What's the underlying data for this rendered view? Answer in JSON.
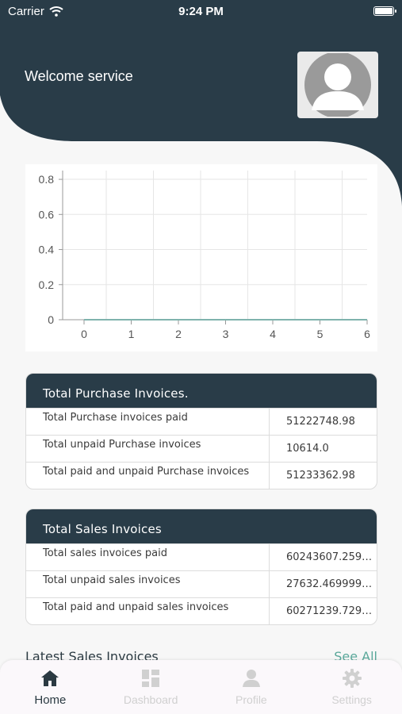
{
  "status_bar": {
    "carrier": "Carrier",
    "time": "9:24 PM"
  },
  "header": {
    "welcome": "Welcome service"
  },
  "colors": {
    "header_bg": "#293c48",
    "accent": "#5aa89a",
    "line": "#7fb3ad"
  },
  "chart_data": {
    "type": "line",
    "x": [
      0,
      1,
      2,
      3,
      4,
      5,
      6
    ],
    "series": [
      {
        "values": [
          0,
          0,
          0,
          0,
          0,
          0,
          0
        ]
      }
    ],
    "xticks": [
      "0",
      "1",
      "2",
      "3",
      "4",
      "5",
      "6"
    ],
    "yticks": [
      "0",
      "0.2",
      "0.4",
      "0.6",
      "0.8"
    ],
    "ylim": [
      0,
      0.85
    ],
    "grid": true
  },
  "purchase": {
    "title": "Total Purchase Invoices.",
    "rows": [
      {
        "label": "Total Purchase invoices paid",
        "value": "51222748.98"
      },
      {
        "label": "Total unpaid Purchase invoices",
        "value": "10614.0"
      },
      {
        "label": "Total paid and unpaid Purchase invoices",
        "value": "51233362.98"
      }
    ]
  },
  "sales": {
    "title": "Total Sales Invoices",
    "rows": [
      {
        "label": "Total sales invoices paid",
        "value": "60243607.2599..."
      },
      {
        "label": "Total unpaid sales invoices",
        "value": "27632.4699999..."
      },
      {
        "label": "Total paid and unpaid sales invoices",
        "value": "60271239.7299..."
      }
    ]
  },
  "latest": {
    "title": "Latest Sales Invoices",
    "see_all": "See All"
  },
  "tabs": [
    {
      "label": "Home",
      "icon": "home-icon"
    },
    {
      "label": "Dashboard",
      "icon": "dashboard-icon"
    },
    {
      "label": "Profile",
      "icon": "person-icon"
    },
    {
      "label": "Settings",
      "icon": "gear-icon"
    }
  ]
}
